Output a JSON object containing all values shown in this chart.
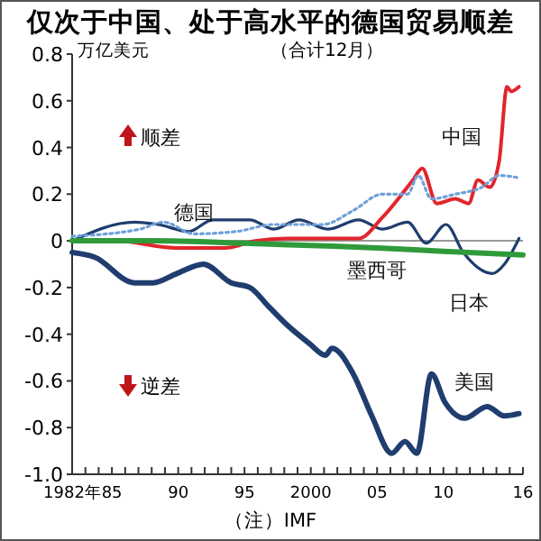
{
  "chart_data": {
    "type": "line",
    "title": "仅次于中国、处于高水平的德国贸易顺差",
    "subtitle": "（合计12月）",
    "ylabel": "万亿美元",
    "annotations": [
      "顺差",
      "逆差",
      "（注）IMF"
    ],
    "xlim": [
      1982,
      2016
    ],
    "xticks": [
      {
        "value": 1982,
        "label": "1982年"
      },
      {
        "value": 1983,
        "label": null
      },
      {
        "value": 1984,
        "label": null
      },
      {
        "value": 1985,
        "label": "85"
      },
      {
        "value": 1986,
        "label": null
      },
      {
        "value": 1987,
        "label": null
      },
      {
        "value": 1988,
        "label": null
      },
      {
        "value": 1989,
        "label": null
      },
      {
        "value": 1990,
        "label": "90"
      },
      {
        "value": 1991,
        "label": null
      },
      {
        "value": 1992,
        "label": null
      },
      {
        "value": 1993,
        "label": null
      },
      {
        "value": 1994,
        "label": null
      },
      {
        "value": 1995,
        "label": "95"
      },
      {
        "value": 1996,
        "label": null
      },
      {
        "value": 1997,
        "label": null
      },
      {
        "value": 1998,
        "label": null
      },
      {
        "value": 1999,
        "label": null
      },
      {
        "value": 2000,
        "label": "2000"
      },
      {
        "value": 2001,
        "label": null
      },
      {
        "value": 2002,
        "label": null
      },
      {
        "value": 2003,
        "label": null
      },
      {
        "value": 2004,
        "label": null
      },
      {
        "value": 2005,
        "label": "05"
      },
      {
        "value": 2006,
        "label": null
      },
      {
        "value": 2007,
        "label": null
      },
      {
        "value": 2008,
        "label": null
      },
      {
        "value": 2009,
        "label": null
      },
      {
        "value": 2010,
        "label": "10"
      },
      {
        "value": 2011,
        "label": null
      },
      {
        "value": 2012,
        "label": null
      },
      {
        "value": 2013,
        "label": null
      },
      {
        "value": 2014,
        "label": null
      },
      {
        "value": 2015,
        "label": null
      },
      {
        "value": 2016,
        "label": "16"
      }
    ],
    "ylim": [
      -1,
      0.8
    ],
    "yticks": [
      0.8,
      0.6,
      0.4,
      0.2,
      0,
      -0.2,
      -0.4,
      -0.6,
      -0.8,
      {
        "value": -1,
        "label": "-1.0"
      }
    ],
    "ref_lines": [
      {
        "axis": "y",
        "value": 0,
        "color": "#999999"
      }
    ],
    "grid": false,
    "marker": "none",
    "series": [
      {
        "name": "美国",
        "color": "#1f3d6e",
        "x": [
          1982,
          1983.7,
          1986.7,
          1988.1,
          1989.9,
          1991.9,
          1994,
          1995.4,
          1996.8,
          1998.2,
          1999.9,
          2001.1,
          2001.6,
          2003.2,
          2004.6,
          2006.1,
          2007.1,
          2008,
          2009.1,
          2010.1,
          2011.6,
          2013.3,
          2014.6,
          2015.7
        ],
        "values": [
          -0.05,
          -0.07,
          -0.18,
          -0.18,
          -0.14,
          -0.1,
          -0.18,
          -0.2,
          -0.28,
          -0.36,
          -0.44,
          -0.49,
          -0.46,
          -0.57,
          -0.75,
          -0.91,
          -0.86,
          -0.91,
          -0.57,
          -0.69,
          -0.76,
          -0.71,
          -0.75,
          -0.74
        ]
      },
      {
        "name": "日本",
        "color": "#1f3d6e",
        "x": [
          1982,
          1986.7,
          1988.5,
          1990.8,
          1992.6,
          1995.4,
          1997.2,
          1999.1,
          2001.3,
          2003.6,
          2005.4,
          2007.3,
          2008.7,
          2010.2,
          2011.5,
          2013.7,
          2014.6,
          2015.7
        ],
        "values": [
          0,
          0.08,
          0.07,
          0.04,
          0.09,
          0.09,
          0.05,
          0.09,
          0.05,
          0.09,
          0.05,
          0.08,
          -0.01,
          0.07,
          -0.05,
          -0.14,
          -0.1,
          0.01
        ]
      },
      {
        "name": "中国",
        "color": "#e0262b",
        "x": [
          1982,
          1985.3,
          1989.8,
          1993.6,
          1995.8,
          1998.2,
          2002.1,
          2003.6,
          2005.4,
          2007.7,
          2008.4,
          2009.5,
          2010.9,
          2011.9,
          2012.6,
          2013.5,
          2014.2,
          2014.8,
          2015.1,
          2015.7
        ],
        "values": [
          0,
          0,
          -0.03,
          -0.03,
          0,
          0.01,
          0.01,
          0.01,
          0.1,
          0.26,
          0.31,
          0.16,
          0.18,
          0.16,
          0.26,
          0.23,
          0.34,
          0.66,
          0.64,
          0.66
        ]
      },
      {
        "name": "德国",
        "color": "#6fa0d8",
        "line_style": "dotted",
        "x": [
          1982,
          1987.1,
          1988.9,
          1991.2,
          1994.4,
          1997.2,
          2000.9,
          2003.2,
          2005.4,
          2007.3,
          2008.1,
          2009.1,
          2010.9,
          2012.9,
          2014.2,
          2015.7
        ],
        "values": [
          0.02,
          0.05,
          0.08,
          0.03,
          0.04,
          0.07,
          0.07,
          0.13,
          0.2,
          0.2,
          0.28,
          0.18,
          0.2,
          0.23,
          0.28,
          0.27
        ]
      },
      {
        "name": "墨西哥",
        "color": "#2f9a3a",
        "x": [
          1982,
          1988,
          1995,
          2000,
          2005,
          2010,
          2016
        ],
        "values": [
          0,
          0,
          -0.01,
          -0.02,
          -0.03,
          -0.045,
          -0.06
        ]
      }
    ]
  }
}
